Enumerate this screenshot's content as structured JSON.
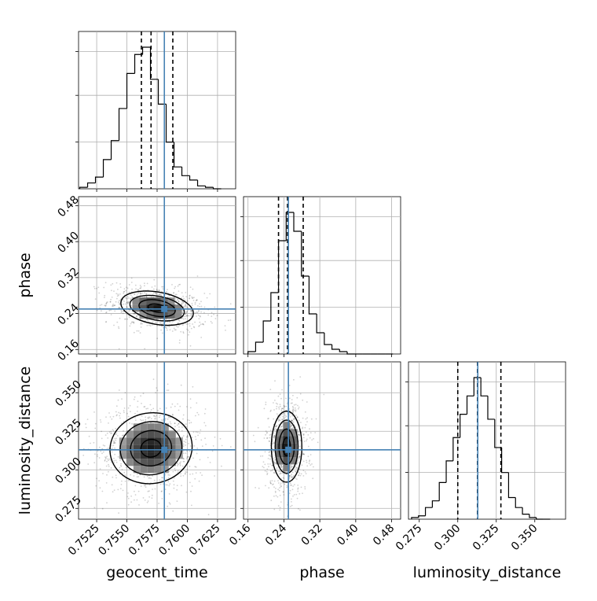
{
  "chart_data": {
    "type": "corner",
    "parameters": [
      {
        "name": "geocent_time",
        "range": [
          0.751,
          0.764
        ],
        "ticks": [
          0.7525,
          0.755,
          0.7575,
          0.76,
          0.7625
        ],
        "tick_labels": [
          "0.7525",
          "0.7550",
          "0.7575",
          "0.7600",
          "0.7625"
        ],
        "truth": 0.7581,
        "quantiles": [
          0.7562,
          0.757,
          0.7588
        ]
      },
      {
        "name": "phase",
        "range": [
          0.15,
          0.5
        ],
        "ticks": [
          0.16,
          0.24,
          0.32,
          0.4,
          0.48
        ],
        "tick_labels": [
          "0.16",
          "0.24",
          "0.32",
          "0.40",
          "0.48"
        ],
        "truth": 0.25,
        "quantiles": [
          0.228,
          0.248,
          0.283
        ]
      },
      {
        "name": "luminosity_distance",
        "range": [
          0.268,
          0.37
        ],
        "ticks": [
          0.275,
          0.3,
          0.325,
          0.35
        ],
        "tick_labels": [
          "0.275",
          "0.300",
          "0.325",
          "0.350"
        ],
        "truth": 0.313,
        "quantiles": [
          0.3,
          0.3128,
          0.328
        ]
      }
    ],
    "histograms": [
      {
        "x": "geocent_time",
        "bin_edges": [
          0.7511,
          0.75175,
          0.7524,
          0.75305,
          0.7537,
          0.75435,
          0.755,
          0.75565,
          0.7563,
          0.75695,
          0.7576,
          0.75825,
          0.7589,
          0.75955,
          0.7602,
          0.76085,
          0.7615,
          0.76215,
          0.7628
        ],
        "counts": [
          1,
          4,
          8,
          20,
          33,
          55,
          79,
          92,
          97,
          75,
          58,
          32,
          15,
          9,
          6,
          2,
          1,
          0
        ]
      },
      {
        "x": "phase",
        "bin_edges": [
          0.16,
          0.177,
          0.194,
          0.211,
          0.228,
          0.245,
          0.262,
          0.279,
          0.296,
          0.313,
          0.33,
          0.347,
          0.364,
          0.381,
          0.398,
          0.415,
          0.432,
          0.449,
          0.466,
          0.483
        ],
        "counts": [
          1,
          5,
          14,
          26,
          48,
          60,
          52,
          33,
          17,
          9,
          4,
          2,
          1,
          0,
          0,
          0,
          0,
          0,
          0
        ]
      },
      {
        "x": "luminosity_distance",
        "bin_edges": [
          0.27,
          0.2745,
          0.279,
          0.2835,
          0.288,
          0.2925,
          0.297,
          0.3015,
          0.306,
          0.3105,
          0.315,
          0.3195,
          0.324,
          0.3285,
          0.333,
          0.3375,
          0.342,
          0.3465,
          0.351,
          0.3555,
          0.36
        ],
        "counts": [
          1,
          2,
          7,
          11,
          22,
          35,
          49,
          63,
          74,
          85,
          74,
          60,
          43,
          28,
          13,
          7,
          3,
          1,
          0,
          0
        ]
      }
    ],
    "joint": [
      {
        "x": "geocent_time",
        "y": "phase",
        "center": [
          0.7575,
          0.252
        ],
        "sigma": [
          0.0015,
          0.019
        ],
        "rho": -0.3
      },
      {
        "x": "geocent_time",
        "y": "luminosity_distance",
        "center": [
          0.757,
          0.314
        ],
        "sigma": [
          0.0017,
          0.0115
        ],
        "rho": 0.05
      },
      {
        "x": "phase",
        "y": "luminosity_distance",
        "center": [
          0.246,
          0.315
        ],
        "sigma": [
          0.017,
          0.0115
        ],
        "rho": 0.0
      }
    ],
    "truth_color": "#4682b4",
    "quantile_style": "dashed"
  }
}
